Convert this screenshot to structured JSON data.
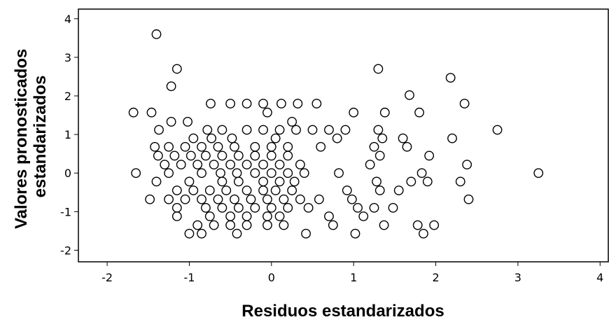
{
  "chart_data": {
    "type": "scatter",
    "xlabel": "Residuos estandarizados",
    "ylabel_lines": [
      "Valores pronosticados",
      "estandarizados"
    ],
    "xlim": [
      -2.35,
      4.1
    ],
    "ylim": [
      -2.3,
      4.25
    ],
    "xticks": [
      -2,
      -1,
      0,
      1,
      2,
      3,
      4
    ],
    "yticks": [
      -2,
      -1,
      0,
      1,
      2,
      3,
      4
    ],
    "grid": false,
    "marker": "hollow-circle",
    "points": [
      [
        -1.4,
        3.6
      ],
      [
        -1.15,
        2.7
      ],
      [
        -1.22,
        2.25
      ],
      [
        -1.68,
        1.57
      ],
      [
        -1.46,
        1.57
      ],
      [
        -1.22,
        1.33
      ],
      [
        -1.37,
        1.12
      ],
      [
        -1.02,
        1.33
      ],
      [
        -0.74,
        1.8
      ],
      [
        -0.5,
        1.8
      ],
      [
        -0.3,
        1.8
      ],
      [
        -0.1,
        1.8
      ],
      [
        0.12,
        1.8
      ],
      [
        0.32,
        1.8
      ],
      [
        0.55,
        1.8
      ],
      [
        -0.05,
        1.57
      ],
      [
        0.25,
        1.33
      ],
      [
        -0.95,
        0.9
      ],
      [
        -0.78,
        1.12
      ],
      [
        -0.6,
        1.12
      ],
      [
        -0.3,
        1.12
      ],
      [
        -0.1,
        1.12
      ],
      [
        0.1,
        1.12
      ],
      [
        0.3,
        1.12
      ],
      [
        0.5,
        1.12
      ],
      [
        0.7,
        1.12
      ],
      [
        0.9,
        1.12
      ],
      [
        1.0,
        1.57
      ],
      [
        -1.42,
        0.68
      ],
      [
        -1.25,
        0.68
      ],
      [
        -1.05,
        0.68
      ],
      [
        -0.85,
        0.68
      ],
      [
        -0.65,
        0.68
      ],
      [
        -0.45,
        0.68
      ],
      [
        -0.2,
        0.68
      ],
      [
        0.0,
        0.68
      ],
      [
        0.2,
        0.68
      ],
      [
        0.6,
        0.68
      ],
      [
        -0.73,
        0.9
      ],
      [
        -0.48,
        0.9
      ],
      [
        0.05,
        0.9
      ],
      [
        0.8,
        0.9
      ],
      [
        -1.38,
        0.45
      ],
      [
        -1.18,
        0.45
      ],
      [
        -0.98,
        0.45
      ],
      [
        -0.8,
        0.45
      ],
      [
        -0.6,
        0.45
      ],
      [
        -0.4,
        0.45
      ],
      [
        -0.2,
        0.45
      ],
      [
        0.0,
        0.45
      ],
      [
        0.2,
        0.45
      ],
      [
        -1.3,
        0.22
      ],
      [
        -1.1,
        0.22
      ],
      [
        -0.9,
        0.22
      ],
      [
        -0.7,
        0.22
      ],
      [
        -0.5,
        0.22
      ],
      [
        -0.3,
        0.22
      ],
      [
        -0.1,
        0.22
      ],
      [
        0.1,
        0.22
      ],
      [
        0.35,
        0.22
      ],
      [
        -1.65,
        0.0
      ],
      [
        -1.25,
        0.0
      ],
      [
        -0.85,
        0.0
      ],
      [
        -0.62,
        0.0
      ],
      [
        -0.42,
        0.0
      ],
      [
        -0.2,
        0.0
      ],
      [
        0.0,
        0.0
      ],
      [
        0.2,
        0.0
      ],
      [
        0.4,
        0.0
      ],
      [
        0.82,
        0.0
      ],
      [
        -1.4,
        -0.22
      ],
      [
        -1.0,
        -0.22
      ],
      [
        -0.6,
        -0.22
      ],
      [
        -0.4,
        -0.22
      ],
      [
        -0.1,
        -0.22
      ],
      [
        0.1,
        -0.22
      ],
      [
        0.28,
        -0.22
      ],
      [
        -1.15,
        -0.45
      ],
      [
        -0.95,
        -0.45
      ],
      [
        -0.75,
        -0.45
      ],
      [
        -0.55,
        -0.45
      ],
      [
        -0.3,
        -0.45
      ],
      [
        -0.1,
        -0.45
      ],
      [
        0.05,
        -0.45
      ],
      [
        0.25,
        -0.45
      ],
      [
        0.92,
        -0.45
      ],
      [
        -1.48,
        -0.68
      ],
      [
        -1.25,
        -0.68
      ],
      [
        -1.05,
        -0.68
      ],
      [
        -0.85,
        -0.68
      ],
      [
        -0.65,
        -0.68
      ],
      [
        -0.45,
        -0.68
      ],
      [
        -0.25,
        -0.68
      ],
      [
        -0.05,
        -0.68
      ],
      [
        0.15,
        -0.68
      ],
      [
        0.35,
        -0.68
      ],
      [
        0.58,
        -0.68
      ],
      [
        0.98,
        -0.68
      ],
      [
        -1.15,
        -0.9
      ],
      [
        -0.8,
        -0.9
      ],
      [
        -0.6,
        -0.9
      ],
      [
        -0.4,
        -0.9
      ],
      [
        -0.2,
        -0.9
      ],
      [
        0.0,
        -0.9
      ],
      [
        0.2,
        -0.9
      ],
      [
        0.45,
        -0.9
      ],
      [
        1.05,
        -0.9
      ],
      [
        -1.15,
        -1.12
      ],
      [
        -0.75,
        -1.12
      ],
      [
        -0.5,
        -1.12
      ],
      [
        -0.3,
        -1.12
      ],
      [
        -0.05,
        -1.12
      ],
      [
        0.1,
        -1.12
      ],
      [
        0.7,
        -1.12
      ],
      [
        1.12,
        -1.12
      ],
      [
        -0.9,
        -1.35
      ],
      [
        -0.7,
        -1.35
      ],
      [
        -0.5,
        -1.35
      ],
      [
        -0.3,
        -1.35
      ],
      [
        -0.05,
        -1.35
      ],
      [
        0.15,
        -1.35
      ],
      [
        0.75,
        -1.35
      ],
      [
        -1.0,
        -1.57
      ],
      [
        -0.85,
        -1.57
      ],
      [
        -0.42,
        -1.57
      ],
      [
        0.42,
        -1.57
      ],
      [
        1.02,
        -1.57
      ],
      [
        1.3,
        2.7
      ],
      [
        1.38,
        1.57
      ],
      [
        1.3,
        1.12
      ],
      [
        1.35,
        0.9
      ],
      [
        1.25,
        0.68
      ],
      [
        1.32,
        0.45
      ],
      [
        1.2,
        0.22
      ],
      [
        1.28,
        -0.22
      ],
      [
        1.32,
        -0.45
      ],
      [
        1.25,
        -0.9
      ],
      [
        1.48,
        -0.9
      ],
      [
        1.55,
        -0.45
      ],
      [
        1.37,
        -1.35
      ],
      [
        1.68,
        2.02
      ],
      [
        1.8,
        1.57
      ],
      [
        1.6,
        0.9
      ],
      [
        1.65,
        0.68
      ],
      [
        1.7,
        -0.22
      ],
      [
        1.83,
        0.0
      ],
      [
        1.9,
        -0.22
      ],
      [
        1.92,
        0.45
      ],
      [
        1.78,
        -1.35
      ],
      [
        1.85,
        -1.57
      ],
      [
        1.98,
        -1.35
      ],
      [
        2.18,
        2.47
      ],
      [
        2.35,
        1.8
      ],
      [
        2.2,
        0.9
      ],
      [
        2.38,
        0.22
      ],
      [
        2.3,
        -0.22
      ],
      [
        2.4,
        -0.68
      ],
      [
        2.75,
        1.12
      ],
      [
        3.25,
        0.0
      ]
    ]
  }
}
